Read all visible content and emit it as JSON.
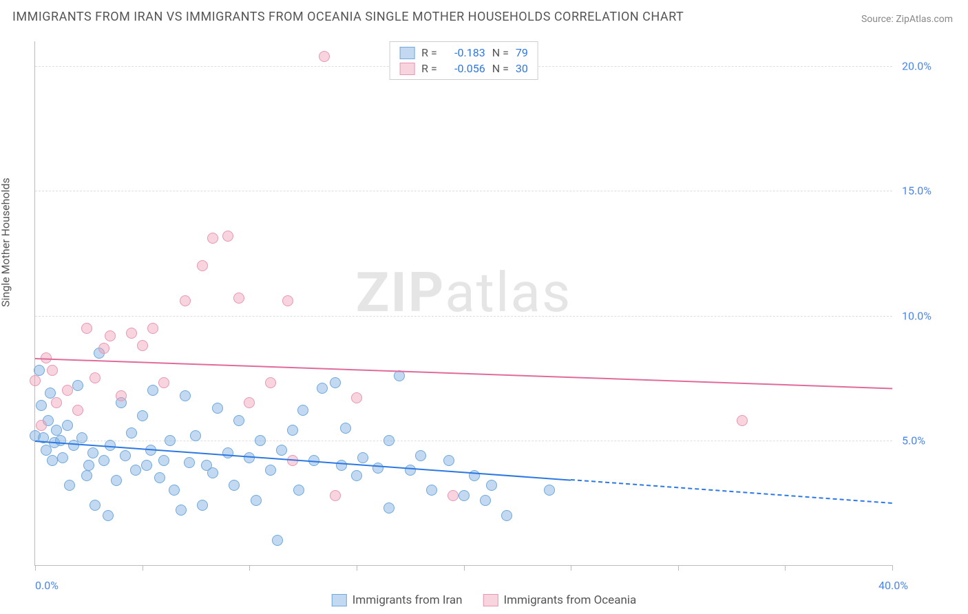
{
  "chart": {
    "type": "scatter",
    "title": "IMMIGRANTS FROM IRAN VS IMMIGRANTS FROM OCEANIA SINGLE MOTHER HOUSEHOLDS CORRELATION CHART",
    "source_prefix": "Source: ",
    "source_name": "ZipAtlas.com",
    "ylabel": "Single Mother Households",
    "watermark_bold": "ZIP",
    "watermark_rest": "atlas",
    "background_color": "#ffffff",
    "grid_color": "#dddddd",
    "axis_color": "#bbbbbb",
    "xlim": [
      0,
      40
    ],
    "ylim": [
      0,
      21
    ],
    "x_ticks": [
      0,
      5,
      10,
      15,
      20,
      25,
      30,
      35,
      40
    ],
    "x_tick_labels": {
      "0": "0.0%",
      "40": "40.0%"
    },
    "x_tick_label_color": "#4a86e8",
    "y_ticks_right": [
      {
        "v": 5,
        "label": "5.0%"
      },
      {
        "v": 10,
        "label": "10.0%"
      },
      {
        "v": 15,
        "label": "15.0%"
      },
      {
        "v": 20,
        "label": "20.0%"
      }
    ],
    "y_tick_label_color": "#4a86e8",
    "series": [
      {
        "id": "iran",
        "label": "Immigrants from Iran",
        "color_fill": "rgba(120,170,225,0.45)",
        "color_stroke": "#6fa8dc",
        "R": "-0.183",
        "N": "79",
        "marker_radius": 8,
        "trendline": {
          "y_at_x0": 5.0,
          "y_at_xmax": 2.5,
          "solid_until_x": 25,
          "color": "#2b78e4"
        },
        "points": [
          [
            0,
            5.2
          ],
          [
            0.2,
            7.8
          ],
          [
            0.3,
            6.4
          ],
          [
            0.4,
            5.1
          ],
          [
            0.5,
            4.6
          ],
          [
            0.6,
            5.8
          ],
          [
            0.7,
            6.9
          ],
          [
            0.8,
            4.2
          ],
          [
            0.9,
            4.9
          ],
          [
            1,
            5.4
          ],
          [
            1.2,
            5.0
          ],
          [
            1.3,
            4.3
          ],
          [
            1.5,
            5.6
          ],
          [
            1.6,
            3.2
          ],
          [
            1.8,
            4.8
          ],
          [
            2,
            7.2
          ],
          [
            2.2,
            5.1
          ],
          [
            2.4,
            3.6
          ],
          [
            2.5,
            4.0
          ],
          [
            2.7,
            4.5
          ],
          [
            3,
            8.5
          ],
          [
            3.2,
            4.2
          ],
          [
            3.4,
            2.0
          ],
          [
            3.5,
            4.8
          ],
          [
            3.8,
            3.4
          ],
          [
            4,
            6.5
          ],
          [
            4.2,
            4.4
          ],
          [
            4.5,
            5.3
          ],
          [
            4.7,
            3.8
          ],
          [
            5,
            6.0
          ],
          [
            5.2,
            4.0
          ],
          [
            5.4,
            4.6
          ],
          [
            5.5,
            7.0
          ],
          [
            5.8,
            3.5
          ],
          [
            6,
            4.2
          ],
          [
            6.3,
            5.0
          ],
          [
            6.5,
            3.0
          ],
          [
            7,
            6.8
          ],
          [
            7.2,
            4.1
          ],
          [
            7.5,
            5.2
          ],
          [
            7.8,
            2.4
          ],
          [
            8,
            4.0
          ],
          [
            8.3,
            3.7
          ],
          [
            8.5,
            6.3
          ],
          [
            9,
            4.5
          ],
          [
            9.3,
            3.2
          ],
          [
            9.5,
            5.8
          ],
          [
            10,
            4.3
          ],
          [
            10.3,
            2.6
          ],
          [
            10.5,
            5.0
          ],
          [
            11,
            3.8
          ],
          [
            11.3,
            1.0
          ],
          [
            11.5,
            4.6
          ],
          [
            12,
            5.4
          ],
          [
            12.3,
            3.0
          ],
          [
            12.5,
            6.2
          ],
          [
            13,
            4.2
          ],
          [
            13.4,
            7.1
          ],
          [
            14,
            7.3
          ],
          [
            14.3,
            4.0
          ],
          [
            14.5,
            5.5
          ],
          [
            15,
            3.6
          ],
          [
            15.3,
            4.3
          ],
          [
            16,
            3.9
          ],
          [
            16.5,
            5.0
          ],
          [
            17,
            7.6
          ],
          [
            17.5,
            3.8
          ],
          [
            18,
            4.4
          ],
          [
            18.5,
            3.0
          ],
          [
            19.3,
            4.2
          ],
          [
            20,
            2.8
          ],
          [
            20.5,
            3.6
          ],
          [
            21,
            2.6
          ],
          [
            21.3,
            3.2
          ],
          [
            22,
            2.0
          ],
          [
            24,
            3.0
          ],
          [
            16.5,
            2.3
          ],
          [
            6.8,
            2.2
          ],
          [
            2.8,
            2.4
          ]
        ]
      },
      {
        "id": "oceania",
        "label": "Immigrants from Oceania",
        "color_fill": "rgba(240,160,185,0.45)",
        "color_stroke": "#e896b3",
        "R": "-0.056",
        "N": "30",
        "marker_radius": 8,
        "trendline": {
          "y_at_x0": 8.3,
          "y_at_xmax": 7.1,
          "solid_until_x": 40,
          "color": "#e06a9a"
        },
        "points": [
          [
            0,
            7.4
          ],
          [
            0.3,
            5.6
          ],
          [
            0.8,
            7.8
          ],
          [
            1,
            6.5
          ],
          [
            1.5,
            7.0
          ],
          [
            2,
            6.2
          ],
          [
            2.4,
            9.5
          ],
          [
            2.8,
            7.5
          ],
          [
            3.2,
            8.7
          ],
          [
            3.5,
            9.2
          ],
          [
            4,
            6.8
          ],
          [
            4.5,
            9.3
          ],
          [
            5,
            8.8
          ],
          [
            5.5,
            9.5
          ],
          [
            6,
            7.3
          ],
          [
            7,
            10.6
          ],
          [
            7.8,
            12.0
          ],
          [
            8.3,
            13.1
          ],
          [
            9,
            13.2
          ],
          [
            9.5,
            10.7
          ],
          [
            10,
            6.5
          ],
          [
            11,
            7.3
          ],
          [
            11.8,
            10.6
          ],
          [
            12,
            4.2
          ],
          [
            13.5,
            20.4
          ],
          [
            14,
            2.8
          ],
          [
            15,
            6.7
          ],
          [
            19.5,
            2.8
          ],
          [
            33,
            5.8
          ],
          [
            0.5,
            8.3
          ]
        ]
      }
    ],
    "legend_top": {
      "R_label": "R =",
      "N_label": "N =",
      "value_color": "#2b78e4",
      "label_color": "#555555"
    }
  }
}
